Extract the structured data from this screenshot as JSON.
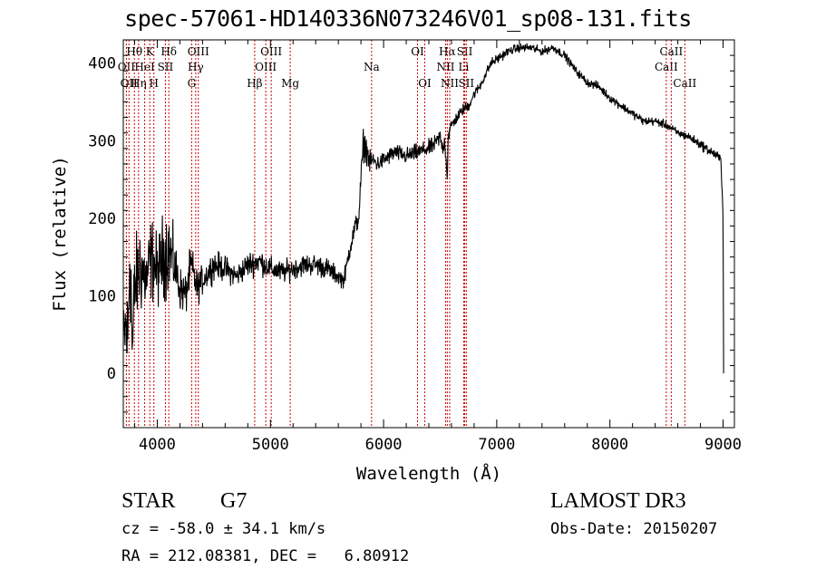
{
  "chart_data": {
    "type": "line",
    "title": "spec-57061-HD140336N073246V01_sp08-131.fits",
    "xlabel": "Wavelength (Å)",
    "ylabel": "Flux (relative)",
    "xlim": [
      3700,
      9100
    ],
    "ylim": [
      -70,
      430
    ],
    "xticks": [
      4000,
      5000,
      6000,
      7000,
      8000,
      9000
    ],
    "yticks": [
      0,
      100,
      200,
      300,
      400
    ],
    "xtick_labels": [
      "4000",
      "5000",
      "6000",
      "7000",
      "8000",
      "9000"
    ],
    "ytick_labels": [
      "0",
      "100",
      "200",
      "300",
      "400"
    ],
    "line_color": "#000000",
    "marker_color": "#cc0000",
    "series": [
      {
        "name": "flux",
        "x": [
          3700,
          3720,
          3740,
          3760,
          3780,
          3800,
          3850,
          3900,
          3950,
          4000,
          4050,
          4100,
          4150,
          4200,
          4250,
          4300,
          4350,
          4400,
          4500,
          4600,
          4700,
          4800,
          4900,
          5000,
          5100,
          5200,
          5300,
          5400,
          5500,
          5600,
          5650,
          5700,
          5750,
          5780,
          5800,
          5820,
          5850,
          5880,
          5900,
          5950,
          6000,
          6100,
          6200,
          6300,
          6400,
          6450,
          6500,
          6520,
          6540,
          6560,
          6563,
          6570,
          6600,
          6650,
          6700,
          6750,
          6800,
          6850,
          6900,
          6950,
          7000,
          7100,
          7200,
          7300,
          7400,
          7500,
          7600,
          7700,
          7800,
          7900,
          8000,
          8100,
          8200,
          8300,
          8400,
          8500,
          8600,
          8700,
          8800,
          8900,
          8950,
          8980,
          9000,
          9005
        ],
        "y": [
          30,
          60,
          40,
          170,
          20,
          110,
          140,
          120,
          150,
          130,
          150,
          160,
          140,
          110,
          100,
          140,
          110,
          120,
          140,
          135,
          125,
          140,
          145,
          135,
          130,
          135,
          140,
          140,
          135,
          125,
          120,
          160,
          190,
          200,
          250,
          295,
          290,
          270,
          275,
          270,
          275,
          285,
          280,
          285,
          290,
          295,
          305,
          290,
          300,
          260,
          250,
          305,
          320,
          330,
          340,
          345,
          360,
          370,
          385,
          400,
          405,
          415,
          420,
          420,
          415,
          420,
          410,
          390,
          375,
          370,
          355,
          345,
          335,
          325,
          325,
          320,
          310,
          305,
          295,
          285,
          280,
          275,
          210,
          0
        ],
        "noise": [
          60,
          70,
          80,
          100,
          90,
          60,
          70,
          50,
          60,
          50,
          60,
          60,
          40,
          30,
          30,
          30,
          25,
          20,
          20,
          18,
          16,
          18,
          18,
          16,
          16,
          15,
          15,
          15,
          15,
          12,
          12,
          14,
          14,
          14,
          16,
          22,
          20,
          16,
          14,
          12,
          12,
          12,
          12,
          12,
          12,
          12,
          12,
          12,
          12,
          8,
          8,
          10,
          10,
          8,
          8,
          8,
          7,
          7,
          7,
          7,
          7,
          6,
          6,
          6,
          6,
          6,
          6,
          6,
          6,
          6,
          6,
          6,
          6,
          6,
          6,
          6,
          6,
          6,
          7,
          7,
          7,
          7,
          10,
          0
        ]
      }
    ],
    "line_markers": [
      {
        "wl": 3727,
        "label": "OII",
        "row": 2
      },
      {
        "wl": 3750,
        "label": "OII",
        "row": 3
      },
      {
        "wl": 3798,
        "label": "Hθ",
        "row": 1
      },
      {
        "wl": 3835,
        "label": "Hη",
        "row": 3
      },
      {
        "wl": 3889,
        "label": "HeI",
        "row": 2
      },
      {
        "wl": 3934,
        "label": "K",
        "row": 1
      },
      {
        "wl": 3970,
        "label": "H",
        "row": 3
      },
      {
        "wl": 4072,
        "label": "SII",
        "row": 2
      },
      {
        "wl": 4102,
        "label": "Hδ",
        "row": 1
      },
      {
        "wl": 4304,
        "label": "G",
        "row": 3
      },
      {
        "wl": 4340,
        "label": "Hγ",
        "row": 2
      },
      {
        "wl": 4363,
        "label": "OIII",
        "row": 1
      },
      {
        "wl": 4861,
        "label": "Hβ",
        "row": 3
      },
      {
        "wl": 4959,
        "label": "OIII",
        "row": 2
      },
      {
        "wl": 5007,
        "label": "OIII",
        "row": 1
      },
      {
        "wl": 5175,
        "label": "Mg",
        "row": 3
      },
      {
        "wl": 5894,
        "label": "Na",
        "row": 2
      },
      {
        "wl": 6300,
        "label": "OI",
        "row": 1
      },
      {
        "wl": 6364,
        "label": "OI",
        "row": 3
      },
      {
        "wl": 6548,
        "label": "NII",
        "row": 2
      },
      {
        "wl": 6563,
        "label": "Hα",
        "row": 1
      },
      {
        "wl": 6584,
        "label": "NII",
        "row": 3
      },
      {
        "wl": 6708,
        "label": "Li",
        "row": 2
      },
      {
        "wl": 6717,
        "label": "SII",
        "row": 1
      },
      {
        "wl": 6731,
        "label": "SII",
        "row": 3
      },
      {
        "wl": 8498,
        "label": "CaII",
        "row": 2
      },
      {
        "wl": 8542,
        "label": "CaII",
        "row": 1
      },
      {
        "wl": 8662,
        "label": "CaII",
        "row": 3
      }
    ]
  },
  "footer": {
    "object_type": "STAR",
    "subclass": "G7",
    "redshift": "cz = -58.0 ± 34.1 km/s",
    "coords": "RA = 212.08381, DEC =   6.80912",
    "survey": "LAMOST DR3",
    "obs_date": "Obs-Date: 20150207"
  }
}
